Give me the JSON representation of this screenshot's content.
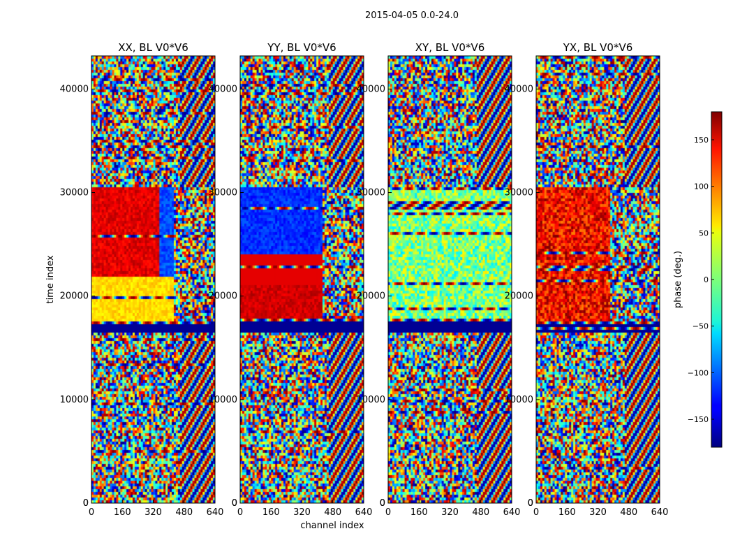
{
  "figure": {
    "suptitle": "2015-04-05 0.0-24.0",
    "ylabel": "time index",
    "xlabel": "channel index"
  },
  "chart_data": {
    "type": "heatmap",
    "x": {
      "label": "channel index",
      "range": [
        0,
        640
      ],
      "ticks": [
        0,
        160,
        320,
        480,
        640
      ]
    },
    "y": {
      "label": "time index",
      "range": [
        0,
        43200
      ],
      "ticks": [
        0,
        10000,
        20000,
        30000,
        40000
      ]
    },
    "panels": [
      {
        "title": "XX, BL V0*V6",
        "polarization": "XX"
      },
      {
        "title": "YY, BL V0*V6",
        "polarization": "YY"
      },
      {
        "title": "XY, BL V0*V6",
        "polarization": "XY"
      },
      {
        "title": "YX, BL V0*V6",
        "polarization": "YX"
      }
    ],
    "colorbar": {
      "label": "phase (deg.)",
      "range": [
        -180,
        180
      ],
      "ticks": [
        -150,
        -100,
        -50,
        0,
        50,
        100,
        150
      ],
      "colormap": "jet"
    }
  }
}
